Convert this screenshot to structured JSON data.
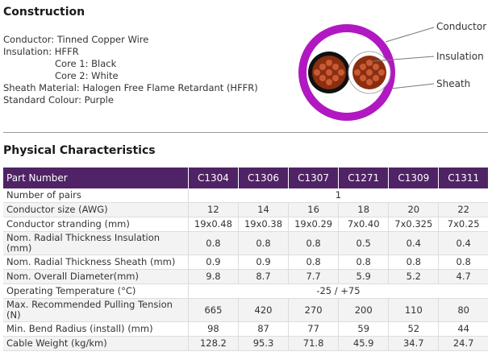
{
  "construction": {
    "title": "Construction",
    "lines": [
      "Conductor: Tinned Copper Wire",
      "Insulation: HFFR",
      "Core 1: Black",
      "Core 2: White",
      "Sheath Material: Halogen Free Flame Retardant (HFFR)",
      "Standard Colour: Purple"
    ],
    "diagram_labels": {
      "conductor": "Conductor",
      "insulation": "Insulation",
      "sheath": "Sheath"
    }
  },
  "physical": {
    "title": "Physical Characteristics",
    "header": {
      "label": "Part Number",
      "parts": [
        "C1304",
        "C1306",
        "C1307",
        "C1271",
        "C1309",
        "C1311"
      ]
    },
    "rows": [
      {
        "label": "Number of pairs",
        "span": "1"
      },
      {
        "label": "Conductor size (AWG)",
        "values": [
          "12",
          "14",
          "16",
          "18",
          "20",
          "22"
        ]
      },
      {
        "label": "Conductor stranding (mm)",
        "values": [
          "19x0.48",
          "19x0.38",
          "19x0.29",
          "7x0.40",
          "7x0.325",
          "7x0.25"
        ]
      },
      {
        "label": "Nom. Radial Thickness Insulation (mm)",
        "values": [
          "0.8",
          "0.8",
          "0.8",
          "0.5",
          "0.4",
          "0.4"
        ]
      },
      {
        "label": "Nom. Radial Thickness Sheath (mm)",
        "values": [
          "0.9",
          "0.9",
          "0.8",
          "0.8",
          "0.8",
          "0.8"
        ]
      },
      {
        "label": "Nom. Overall Diameter(mm)",
        "values": [
          "9.8",
          "8.7",
          "7.7",
          "5.9",
          "5.2",
          "4.7"
        ]
      },
      {
        "label": "Operating Temperature (°C)",
        "span": "-25 / +75"
      },
      {
        "label": "Max. Recommended Pulling Tension (N)",
        "values": [
          "665",
          "420",
          "270",
          "200",
          "110",
          "80"
        ]
      },
      {
        "label": "Min. Bend Radius (install) (mm)",
        "values": [
          "98",
          "87",
          "77",
          "59",
          "52",
          "44"
        ]
      },
      {
        "label": "Cable Weight (kg/km)",
        "values": [
          "128.2",
          "95.3",
          "71.8",
          "45.9",
          "34.7",
          "24.7"
        ]
      }
    ]
  },
  "colors": {
    "sheath": "#b118c2",
    "copper": "#8b2e10",
    "header_bg": "#4f2365"
  }
}
